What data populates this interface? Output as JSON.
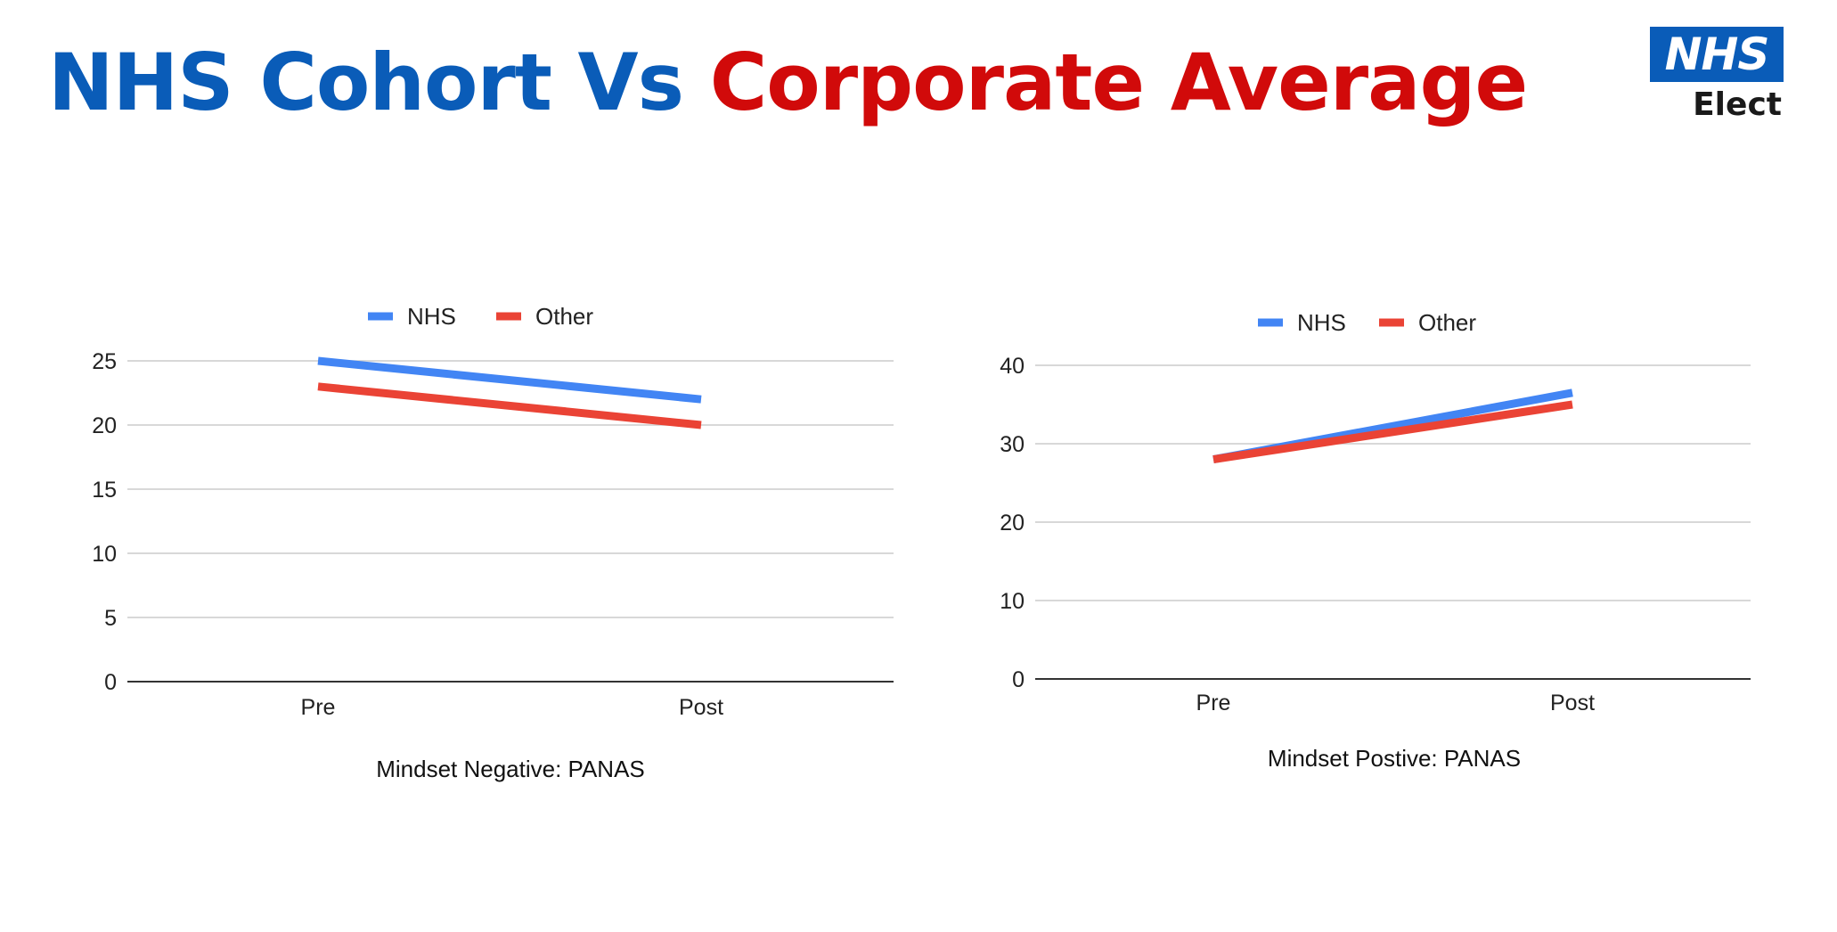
{
  "header": {
    "title_part1": "NHS Cohort Vs",
    "title_part2": "Corporate Average",
    "title_colors": {
      "part1": "#0a5cb8",
      "part2": "#d10a0a"
    }
  },
  "logo": {
    "mark": "NHS",
    "subtitle": "Elect"
  },
  "chart_data": [
    {
      "type": "line",
      "title": "Mindset Negative: PANAS",
      "categories": [
        "Pre",
        "Post"
      ],
      "series": [
        {
          "name": "NHS",
          "values": [
            25,
            22
          ],
          "color": "#4285f4"
        },
        {
          "name": "Other",
          "values": [
            23,
            20
          ],
          "color": "#ea4335"
        }
      ],
      "yticks": [
        0,
        5,
        10,
        15,
        20,
        25
      ],
      "ylim": [
        0,
        25
      ],
      "legend_position": "top",
      "grid": true
    },
    {
      "type": "line",
      "title": "Mindset Postive: PANAS",
      "categories": [
        "Pre",
        "Post"
      ],
      "series": [
        {
          "name": "NHS",
          "values": [
            28,
            36.5
          ],
          "color": "#4285f4"
        },
        {
          "name": "Other",
          "values": [
            28,
            35
          ],
          "color": "#ea4335"
        }
      ],
      "yticks": [
        0,
        10,
        20,
        30,
        40
      ],
      "ylim": [
        0,
        40
      ],
      "legend_position": "top",
      "grid": true
    }
  ]
}
